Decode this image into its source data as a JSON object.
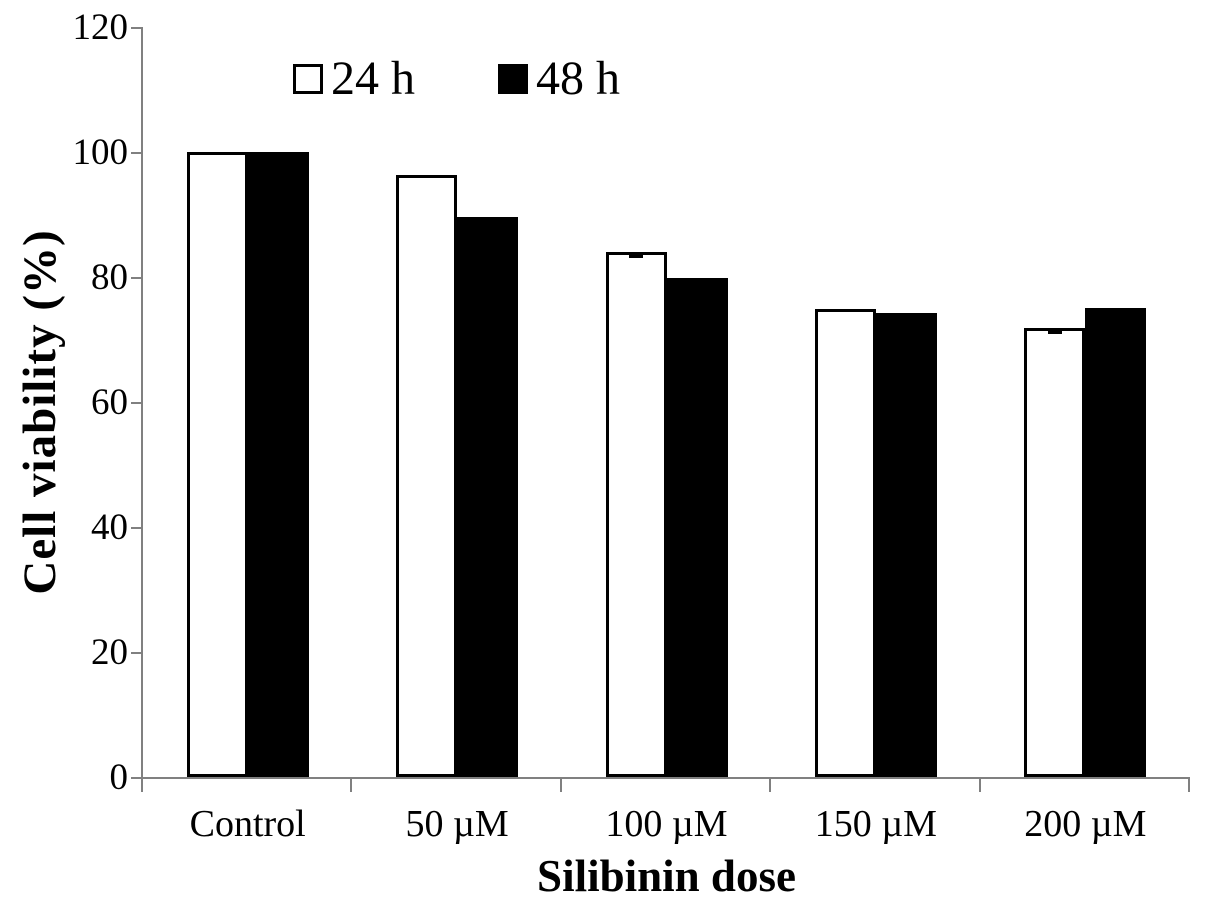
{
  "chart_data": {
    "type": "bar",
    "title": "",
    "xlabel": "Silibinin dose",
    "ylabel": "Cell viability (%)",
    "categories": [
      "Control",
      "50 µM",
      "100 µM",
      "150 µM",
      "200 µM"
    ],
    "series": [
      {
        "name": "24 h",
        "fill": "#ffffff",
        "outline": "#000000",
        "values": [
          100,
          96.3,
          84.0,
          74.9,
          71.8
        ],
        "error_caps": [
          false,
          false,
          true,
          false,
          true
        ]
      },
      {
        "name": "48 h",
        "fill": "#000000",
        "outline": "#000000",
        "values": [
          100,
          89.6,
          79.8,
          74.2,
          75.0
        ],
        "error_caps": [
          false,
          false,
          false,
          false,
          false
        ]
      }
    ],
    "ylim": [
      0,
      120
    ],
    "yticks": [
      0,
      20,
      40,
      60,
      80,
      100,
      120
    ],
    "grid": false,
    "legend_position": "top-inside",
    "axis_color": "#808080",
    "text_color": "#000000"
  }
}
